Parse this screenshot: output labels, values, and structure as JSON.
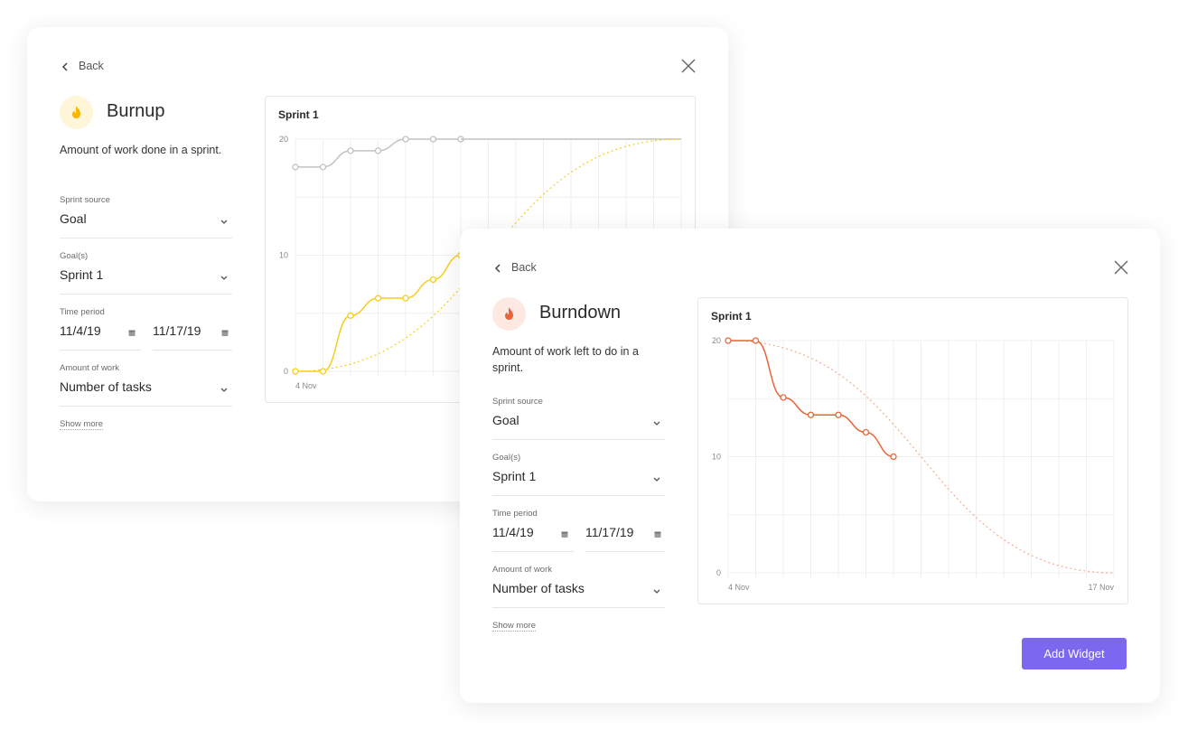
{
  "cards": [
    {
      "back": "Back",
      "title": "Burnup",
      "description": "Amount of work done in a sprint.",
      "icon_color": "#f7b500",
      "icon_bg": "#fff5d9",
      "fields": [
        {
          "label": "Sprint source",
          "value": "Goal"
        },
        {
          "label": "Goal(s)",
          "value": "Sprint 1"
        },
        {
          "label": "Time period",
          "start": "11/4/19",
          "end": "11/17/19"
        },
        {
          "label": "Amount of work",
          "value": "Number of tasks"
        }
      ],
      "show_more": "Show more",
      "chart": {
        "type": "line",
        "title": "Sprint 1",
        "xlim": [
          0,
          14
        ],
        "xticks": [
          {
            "value": 0,
            "label": "4 Nov"
          }
        ],
        "xgrid": [
          0,
          1,
          2,
          3,
          4,
          5,
          6,
          7,
          8,
          9,
          10,
          11,
          12,
          13,
          14
        ],
        "ylim": [
          0,
          20
        ],
        "yticks": [
          0,
          10,
          20
        ],
        "ygrid": [
          0,
          5,
          10,
          15,
          20
        ],
        "grid": true,
        "series": [
          {
            "color": "#c2c2c2",
            "markers": true,
            "x": [
              0,
              1,
              2,
              3,
              4,
              5,
              6
            ],
            "values": [
              17.6,
              17.6,
              19,
              19,
              20,
              20,
              20
            ]
          },
          {
            "color": "#c2c2c2",
            "markers": false,
            "x": [
              6,
              14
            ],
            "values": [
              20,
              20
            ]
          },
          {
            "color": "#f8cd1a",
            "markers": false,
            "dotted": true,
            "x": [
              0,
              14
            ],
            "values": [
              0,
              20
            ]
          },
          {
            "color": "#f8cd1a",
            "markers": true,
            "x": [
              0,
              1,
              2,
              3,
              4,
              5,
              6
            ],
            "values": [
              0,
              0,
              4.8,
              6.3,
              6.3,
              7.9,
              10
            ]
          }
        ]
      }
    },
    {
      "back": "Back",
      "title": "Burndown",
      "description": "Amount of work left to do in a sprint.",
      "icon_color": "#e8653a",
      "icon_bg": "#fde9e2",
      "fields": [
        {
          "label": "Sprint source",
          "value": "Goal"
        },
        {
          "label": "Goal(s)",
          "value": "Sprint 1"
        },
        {
          "label": "Time period",
          "start": "11/4/19",
          "end": "11/17/19"
        },
        {
          "label": "Amount of work",
          "value": "Number of tasks"
        }
      ],
      "show_more": "Show more",
      "button": "Add Widget",
      "chart": {
        "type": "line",
        "title": "Sprint 1",
        "xlim": [
          0,
          14
        ],
        "xticks": [
          {
            "value": 0,
            "label": "4 Nov"
          },
          {
            "value": 14,
            "label": "17 Nov"
          }
        ],
        "xgrid": [
          0,
          1,
          2,
          3,
          4,
          5,
          6,
          7,
          8,
          9,
          10,
          11,
          12,
          13,
          14
        ],
        "ylim": [
          0,
          20
        ],
        "yticks": [
          0,
          10,
          20
        ],
        "ygrid": [
          0,
          5,
          10,
          15,
          20
        ],
        "grid": true,
        "series": [
          {
            "color": "#f5ab92",
            "markers": false,
            "dotted": true,
            "x": [
              0,
              14
            ],
            "values": [
              20,
              0
            ]
          },
          {
            "color": "#e8653a",
            "markers": true,
            "x": [
              0,
              1,
              2,
              3,
              4,
              5,
              6
            ],
            "values": [
              20,
              20,
              15.1,
              13.6,
              13.6,
              12.1,
              10
            ]
          }
        ]
      }
    }
  ]
}
